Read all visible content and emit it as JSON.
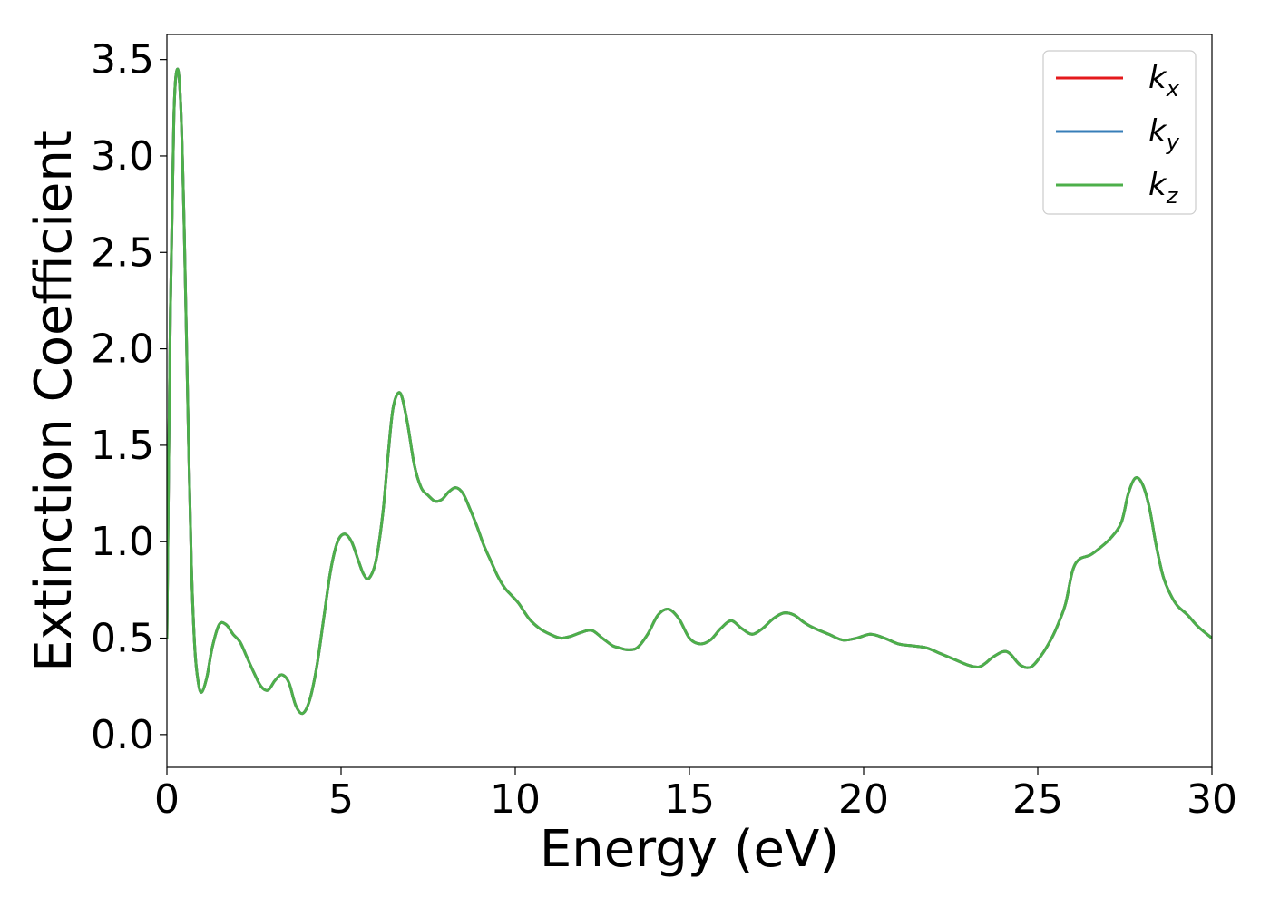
{
  "chart_data": {
    "type": "line",
    "xlabel": "Energy (eV)",
    "ylabel": "Extinction Coefficient",
    "xlim": [
      0,
      30
    ],
    "ylim": [
      -0.17,
      3.63
    ],
    "xticks": [
      "0",
      "5",
      "10",
      "15",
      "20",
      "25",
      "30"
    ],
    "yticks": [
      "0.0",
      "0.5",
      "1.0",
      "1.5",
      "2.0",
      "2.5",
      "3.0",
      "3.5"
    ],
    "grid": false,
    "legend_position": "top-right",
    "series": [
      {
        "name": "k",
        "sub": "x",
        "color": "#e41a1c",
        "x": [
          0,
          0.1,
          0.2,
          0.3,
          0.4,
          0.5,
          0.6,
          0.7,
          0.8,
          0.9,
          1.0,
          1.15,
          1.3,
          1.5,
          1.7,
          1.9,
          2.1,
          2.3,
          2.5,
          2.7,
          2.9,
          3.1,
          3.3,
          3.5,
          3.7,
          3.9,
          4.1,
          4.3,
          4.5,
          4.7,
          4.9,
          5.1,
          5.3,
          5.5,
          5.65,
          5.8,
          6.0,
          6.2,
          6.35,
          6.5,
          6.7,
          6.9,
          7.1,
          7.3,
          7.5,
          7.7,
          7.9,
          8.1,
          8.3,
          8.5,
          8.7,
          8.9,
          9.1,
          9.3,
          9.5,
          9.7,
          9.9,
          10.1,
          10.4,
          10.7,
          11.0,
          11.3,
          11.6,
          11.9,
          12.2,
          12.5,
          12.8,
          13.0,
          13.2,
          13.5,
          13.8,
          14.1,
          14.4,
          14.7,
          15.0,
          15.3,
          15.6,
          15.9,
          16.2,
          16.5,
          16.8,
          17.1,
          17.4,
          17.7,
          18.0,
          18.3,
          18.6,
          19.0,
          19.4,
          19.8,
          20.2,
          20.6,
          21.0,
          21.4,
          21.8,
          22.2,
          22.6,
          23.0,
          23.3,
          23.5,
          23.7,
          24.0,
          24.2,
          24.5,
          24.8,
          25.1,
          25.4,
          25.6,
          25.8,
          26.0,
          26.2,
          26.5,
          26.8,
          27.1,
          27.4,
          27.6,
          27.8,
          28.0,
          28.2,
          28.4,
          28.6,
          28.8,
          29.0,
          29.3,
          29.6,
          30.0
        ],
        "y": [
          0.5,
          2.2,
          3.2,
          3.45,
          3.25,
          2.6,
          1.7,
          0.9,
          0.45,
          0.27,
          0.22,
          0.3,
          0.45,
          0.57,
          0.57,
          0.52,
          0.48,
          0.4,
          0.32,
          0.25,
          0.23,
          0.28,
          0.31,
          0.27,
          0.15,
          0.11,
          0.18,
          0.35,
          0.6,
          0.85,
          1.0,
          1.04,
          1.0,
          0.9,
          0.83,
          0.81,
          0.9,
          1.15,
          1.45,
          1.7,
          1.77,
          1.62,
          1.4,
          1.28,
          1.24,
          1.21,
          1.22,
          1.26,
          1.28,
          1.25,
          1.17,
          1.08,
          0.98,
          0.9,
          0.82,
          0.76,
          0.72,
          0.68,
          0.6,
          0.55,
          0.52,
          0.5,
          0.51,
          0.53,
          0.54,
          0.5,
          0.46,
          0.45,
          0.44,
          0.45,
          0.52,
          0.62,
          0.65,
          0.6,
          0.5,
          0.47,
          0.49,
          0.55,
          0.59,
          0.55,
          0.52,
          0.55,
          0.6,
          0.63,
          0.62,
          0.58,
          0.55,
          0.52,
          0.49,
          0.5,
          0.52,
          0.5,
          0.47,
          0.46,
          0.45,
          0.42,
          0.39,
          0.36,
          0.35,
          0.37,
          0.4,
          0.43,
          0.42,
          0.36,
          0.35,
          0.41,
          0.5,
          0.58,
          0.68,
          0.85,
          0.91,
          0.93,
          0.97,
          1.02,
          1.1,
          1.25,
          1.33,
          1.3,
          1.18,
          0.98,
          0.82,
          0.73,
          0.67,
          0.62,
          0.56,
          0.5
        ]
      },
      {
        "name": "k",
        "sub": "y",
        "color": "#377eb8",
        "x": [
          0,
          0.1,
          0.2,
          0.3,
          0.4,
          0.5,
          0.6,
          0.7,
          0.8,
          0.9,
          1.0,
          1.15,
          1.3,
          1.5,
          1.7,
          1.9,
          2.1,
          2.3,
          2.5,
          2.7,
          2.9,
          3.1,
          3.3,
          3.5,
          3.7,
          3.9,
          4.1,
          4.3,
          4.5,
          4.7,
          4.9,
          5.1,
          5.3,
          5.5,
          5.65,
          5.8,
          6.0,
          6.2,
          6.35,
          6.5,
          6.7,
          6.9,
          7.1,
          7.3,
          7.5,
          7.7,
          7.9,
          8.1,
          8.3,
          8.5,
          8.7,
          8.9,
          9.1,
          9.3,
          9.5,
          9.7,
          9.9,
          10.1,
          10.4,
          10.7,
          11.0,
          11.3,
          11.6,
          11.9,
          12.2,
          12.5,
          12.8,
          13.0,
          13.2,
          13.5,
          13.8,
          14.1,
          14.4,
          14.7,
          15.0,
          15.3,
          15.6,
          15.9,
          16.2,
          16.5,
          16.8,
          17.1,
          17.4,
          17.7,
          18.0,
          18.3,
          18.6,
          19.0,
          19.4,
          19.8,
          20.2,
          20.6,
          21.0,
          21.4,
          21.8,
          22.2,
          22.6,
          23.0,
          23.3,
          23.5,
          23.7,
          24.0,
          24.2,
          24.5,
          24.8,
          25.1,
          25.4,
          25.6,
          25.8,
          26.0,
          26.2,
          26.5,
          26.8,
          27.1,
          27.4,
          27.6,
          27.8,
          28.0,
          28.2,
          28.4,
          28.6,
          28.8,
          29.0,
          29.3,
          29.6,
          30.0
        ],
        "y": [
          0.5,
          2.2,
          3.2,
          3.45,
          3.25,
          2.6,
          1.7,
          0.9,
          0.45,
          0.27,
          0.22,
          0.3,
          0.45,
          0.57,
          0.57,
          0.52,
          0.48,
          0.4,
          0.32,
          0.25,
          0.23,
          0.28,
          0.31,
          0.27,
          0.15,
          0.11,
          0.18,
          0.35,
          0.6,
          0.85,
          1.0,
          1.04,
          1.0,
          0.9,
          0.83,
          0.81,
          0.9,
          1.15,
          1.45,
          1.7,
          1.77,
          1.62,
          1.4,
          1.28,
          1.24,
          1.21,
          1.22,
          1.26,
          1.28,
          1.25,
          1.17,
          1.08,
          0.98,
          0.9,
          0.82,
          0.76,
          0.72,
          0.68,
          0.6,
          0.55,
          0.52,
          0.5,
          0.51,
          0.53,
          0.54,
          0.5,
          0.46,
          0.45,
          0.44,
          0.45,
          0.52,
          0.62,
          0.65,
          0.6,
          0.5,
          0.47,
          0.49,
          0.55,
          0.59,
          0.55,
          0.52,
          0.55,
          0.6,
          0.63,
          0.62,
          0.58,
          0.55,
          0.52,
          0.49,
          0.5,
          0.52,
          0.5,
          0.47,
          0.46,
          0.45,
          0.42,
          0.39,
          0.36,
          0.35,
          0.37,
          0.4,
          0.43,
          0.42,
          0.36,
          0.35,
          0.41,
          0.5,
          0.58,
          0.68,
          0.85,
          0.91,
          0.93,
          0.97,
          1.02,
          1.1,
          1.25,
          1.33,
          1.3,
          1.18,
          0.98,
          0.82,
          0.73,
          0.67,
          0.62,
          0.56,
          0.5
        ]
      },
      {
        "name": "k",
        "sub": "z",
        "color": "#4daf4a",
        "x": [
          0,
          0.1,
          0.2,
          0.3,
          0.4,
          0.5,
          0.6,
          0.7,
          0.8,
          0.9,
          1.0,
          1.15,
          1.3,
          1.5,
          1.7,
          1.9,
          2.1,
          2.3,
          2.5,
          2.7,
          2.9,
          3.1,
          3.3,
          3.5,
          3.7,
          3.9,
          4.1,
          4.3,
          4.5,
          4.7,
          4.9,
          5.1,
          5.3,
          5.5,
          5.65,
          5.8,
          6.0,
          6.2,
          6.35,
          6.5,
          6.7,
          6.9,
          7.1,
          7.3,
          7.5,
          7.7,
          7.9,
          8.1,
          8.3,
          8.5,
          8.7,
          8.9,
          9.1,
          9.3,
          9.5,
          9.7,
          9.9,
          10.1,
          10.4,
          10.7,
          11.0,
          11.3,
          11.6,
          11.9,
          12.2,
          12.5,
          12.8,
          13.0,
          13.2,
          13.5,
          13.8,
          14.1,
          14.4,
          14.7,
          15.0,
          15.3,
          15.6,
          15.9,
          16.2,
          16.5,
          16.8,
          17.1,
          17.4,
          17.7,
          18.0,
          18.3,
          18.6,
          19.0,
          19.4,
          19.8,
          20.2,
          20.6,
          21.0,
          21.4,
          21.8,
          22.2,
          22.6,
          23.0,
          23.3,
          23.5,
          23.7,
          24.0,
          24.2,
          24.5,
          24.8,
          25.1,
          25.4,
          25.6,
          25.8,
          26.0,
          26.2,
          26.5,
          26.8,
          27.1,
          27.4,
          27.6,
          27.8,
          28.0,
          28.2,
          28.4,
          28.6,
          28.8,
          29.0,
          29.3,
          29.6,
          30.0
        ],
        "y": [
          0.5,
          2.2,
          3.2,
          3.45,
          3.25,
          2.6,
          1.7,
          0.9,
          0.45,
          0.27,
          0.22,
          0.3,
          0.45,
          0.57,
          0.57,
          0.52,
          0.48,
          0.4,
          0.32,
          0.25,
          0.23,
          0.28,
          0.31,
          0.27,
          0.15,
          0.11,
          0.18,
          0.35,
          0.6,
          0.85,
          1.0,
          1.04,
          1.0,
          0.9,
          0.83,
          0.81,
          0.9,
          1.15,
          1.45,
          1.7,
          1.77,
          1.62,
          1.4,
          1.28,
          1.24,
          1.21,
          1.22,
          1.26,
          1.28,
          1.25,
          1.17,
          1.08,
          0.98,
          0.9,
          0.82,
          0.76,
          0.72,
          0.68,
          0.6,
          0.55,
          0.52,
          0.5,
          0.51,
          0.53,
          0.54,
          0.5,
          0.46,
          0.45,
          0.44,
          0.45,
          0.52,
          0.62,
          0.65,
          0.6,
          0.5,
          0.47,
          0.49,
          0.55,
          0.59,
          0.55,
          0.52,
          0.55,
          0.6,
          0.63,
          0.62,
          0.58,
          0.55,
          0.52,
          0.49,
          0.5,
          0.52,
          0.5,
          0.47,
          0.46,
          0.45,
          0.42,
          0.39,
          0.36,
          0.35,
          0.37,
          0.4,
          0.43,
          0.42,
          0.36,
          0.35,
          0.41,
          0.5,
          0.58,
          0.68,
          0.85,
          0.91,
          0.93,
          0.97,
          1.02,
          1.1,
          1.25,
          1.33,
          1.3,
          1.18,
          0.98,
          0.82,
          0.73,
          0.67,
          0.62,
          0.56,
          0.5
        ]
      }
    ]
  }
}
